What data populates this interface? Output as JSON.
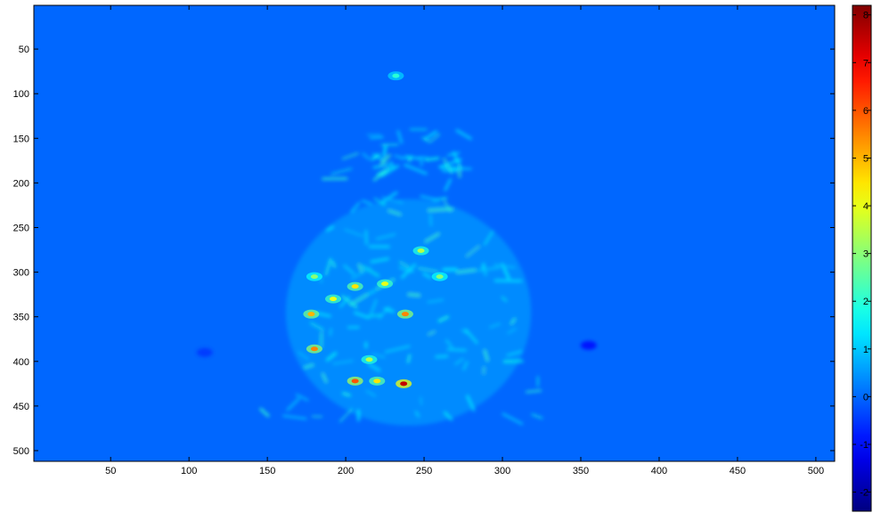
{
  "chart_data": {
    "type": "heatmap",
    "title": "",
    "xlabel": "",
    "ylabel": "",
    "xlim": [
      1,
      512
    ],
    "ylim": [
      512,
      1
    ],
    "y_direction": "reversed (origin top-left)",
    "x_ticks": [
      50,
      100,
      150,
      200,
      250,
      300,
      350,
      400,
      450,
      500
    ],
    "y_ticks": [
      50,
      100,
      150,
      200,
      250,
      300,
      350,
      400,
      450,
      500
    ],
    "background_value": 0,
    "colormap": "jet",
    "colorbar": {
      "location": "right",
      "range": [
        -2.4,
        8.2
      ],
      "ticks": [
        -2,
        -1,
        0,
        1,
        2,
        3,
        4,
        5,
        6,
        7,
        8
      ]
    },
    "hotspots": [
      {
        "x": 178,
        "y": 347,
        "value": 5.0
      },
      {
        "x": 180,
        "y": 386,
        "value": 5.5
      },
      {
        "x": 192,
        "y": 330,
        "value": 4.0
      },
      {
        "x": 206,
        "y": 316,
        "value": 4.5
      },
      {
        "x": 206,
        "y": 422,
        "value": 6.0
      },
      {
        "x": 220,
        "y": 422,
        "value": 4.5
      },
      {
        "x": 238,
        "y": 347,
        "value": 5.5
      },
      {
        "x": 237,
        "y": 425,
        "value": 7.5
      },
      {
        "x": 225,
        "y": 313,
        "value": 4.0
      },
      {
        "x": 248,
        "y": 276,
        "value": 3.5
      },
      {
        "x": 215,
        "y": 398,
        "value": 3.5
      },
      {
        "x": 180,
        "y": 305,
        "value": 3.0
      },
      {
        "x": 260,
        "y": 305,
        "value": 3.0
      },
      {
        "x": 232,
        "y": 80,
        "value": 2.0
      }
    ],
    "diffuse_region": {
      "x_range": [
        150,
        330
      ],
      "y_range": [
        140,
        470
      ],
      "value": 1.2
    },
    "dark_spots": [
      {
        "x": 355,
        "y": 382,
        "value": -1.0
      },
      {
        "x": 110,
        "y": 390,
        "value": -0.6
      }
    ]
  }
}
